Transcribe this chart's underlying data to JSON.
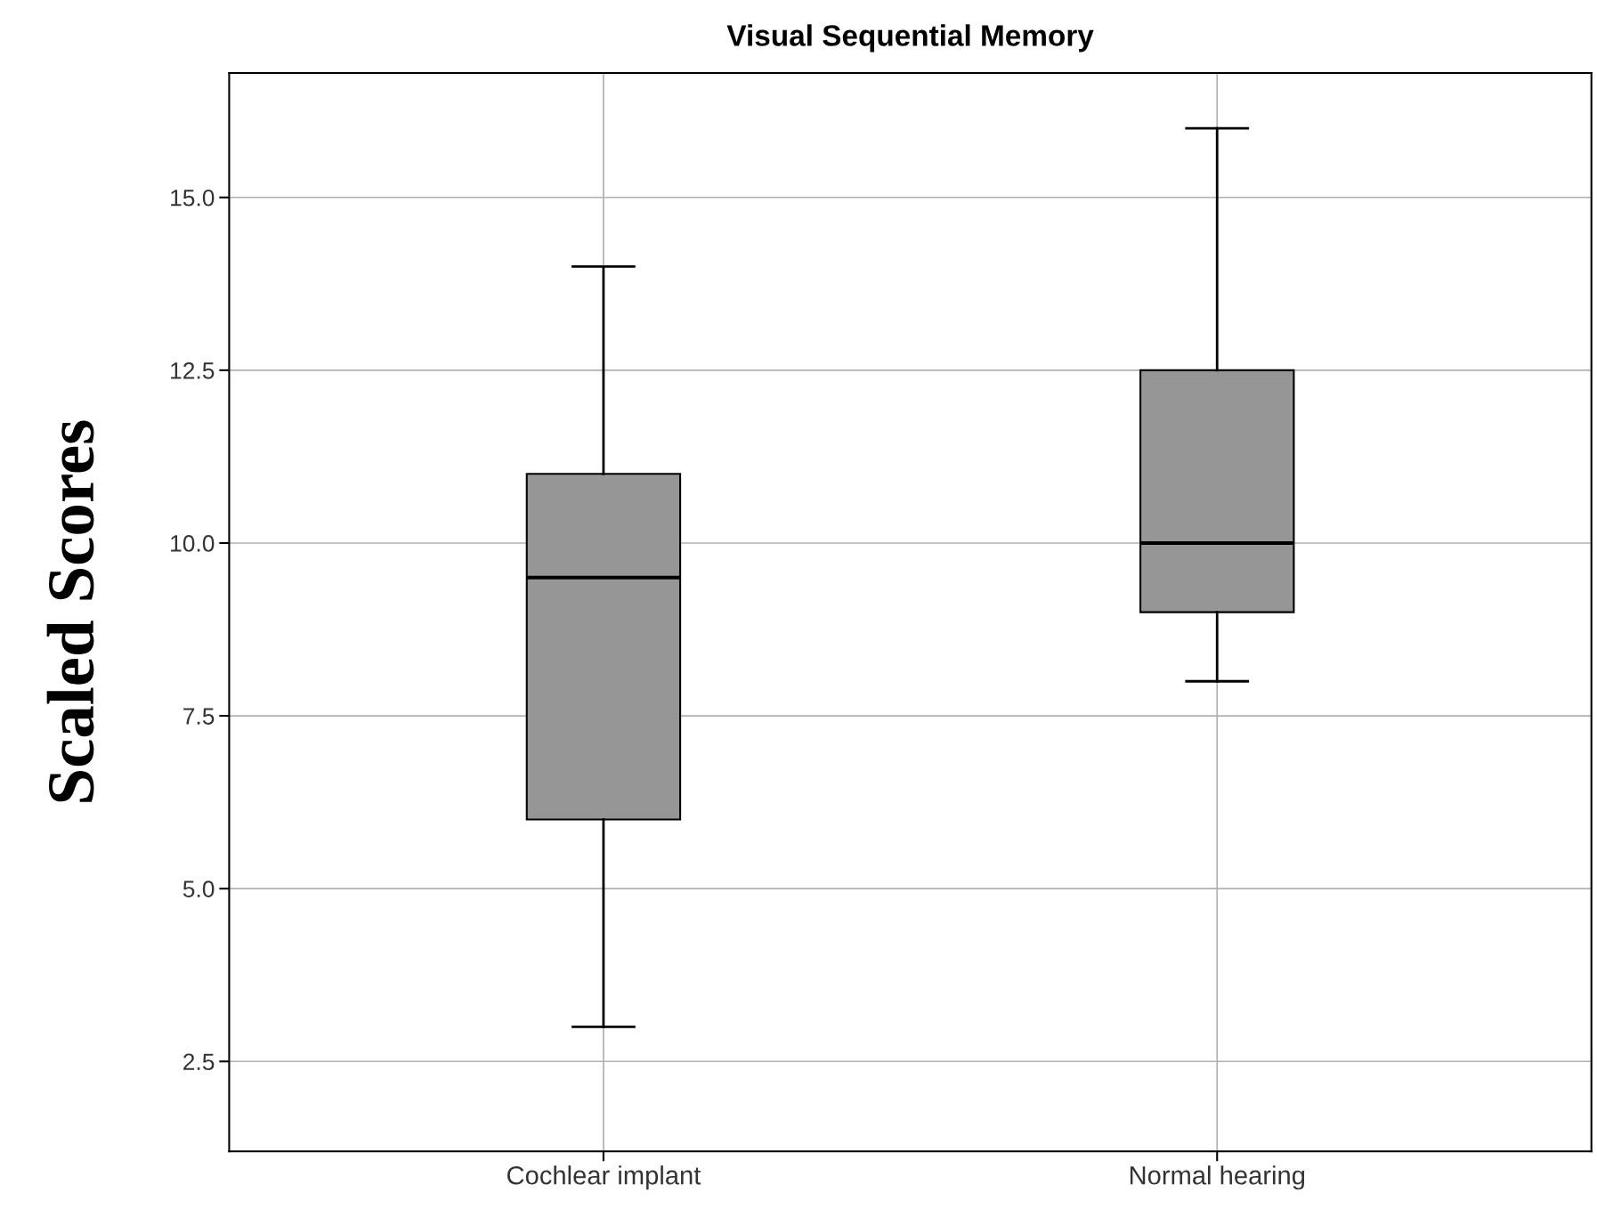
{
  "chart_data": {
    "type": "box",
    "title": "Visual Sequential Memory",
    "ylabel": "Scaled Scores",
    "categories": [
      "Cochlear implant",
      "Normal hearing"
    ],
    "boxes": [
      {
        "low": 3.0,
        "q1": 6.0,
        "median": 9.5,
        "q3": 11.0,
        "high": 14.0
      },
      {
        "low": 8.0,
        "q1": 9.0,
        "median": 10.0,
        "q3": 12.5,
        "high": 16.0
      }
    ],
    "color": "#969696",
    "ylim": [
      1.2,
      16.8
    ],
    "yticks": [
      {
        "value": 2.5,
        "label": "2.5"
      },
      {
        "value": 5,
        "label": "5.0"
      },
      {
        "value": 7.5,
        "label": "7.5"
      },
      {
        "value": 10,
        "label": "10.0"
      },
      {
        "value": 12.5,
        "label": "12.5"
      },
      {
        "value": 15,
        "label": "15.0"
      }
    ],
    "grid": true
  }
}
